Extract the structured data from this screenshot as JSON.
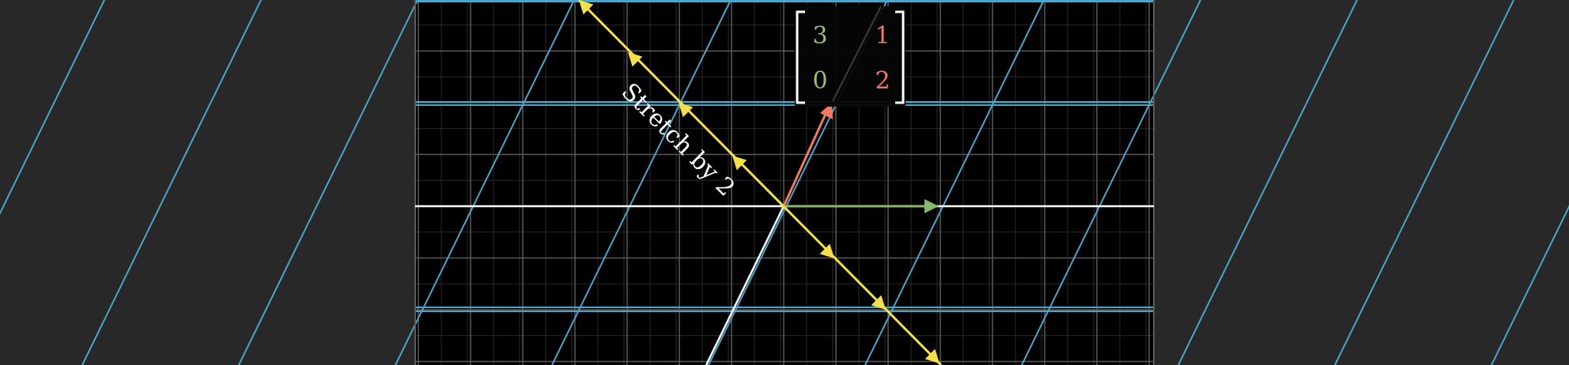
{
  "matrix": {
    "entries": [
      "3",
      "1",
      "0",
      "2"
    ],
    "column_colors": [
      "#9cbd6b",
      "#f07a63"
    ]
  },
  "label": {
    "text": "Stretch by 2"
  },
  "colors": {
    "background": "#000000",
    "page": "#282828",
    "grid": "#5a5a5a",
    "fine_grid": "#2a2a2a",
    "transformed_grid": "#4aa6c8",
    "axes": "#ffffff",
    "i_hat": "#88b86a",
    "j_hat": "#f07a63",
    "eigenline": "#f4e04d",
    "eigenvector": "#f4e04d"
  },
  "icons": [
    "arrowhead-icon",
    "left-bracket-icon",
    "right-bracket-icon"
  ]
}
